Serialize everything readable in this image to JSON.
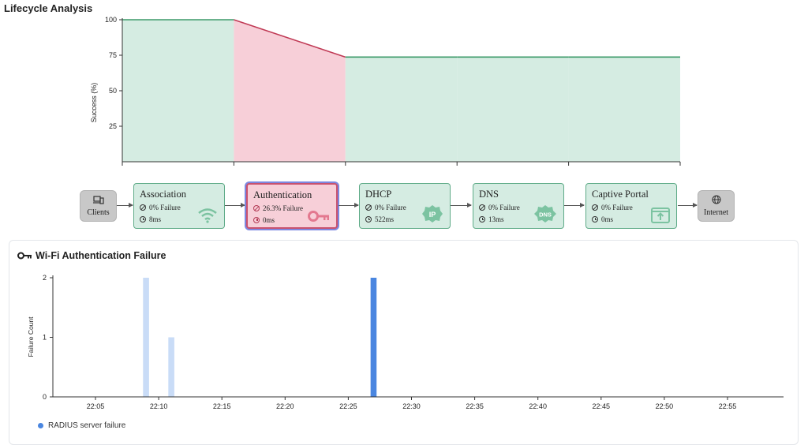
{
  "page": {
    "title": "Lifecycle Analysis"
  },
  "colors": {
    "success_fill": "#d5ece2",
    "success_line": "#3d9a6a",
    "failure_fill": "#f7cfd8",
    "failure_line": "#c03a55",
    "bar_dark": "#4a86e0",
    "bar_light": "#c9dcf7"
  },
  "lifecycle_chart": {
    "ylabel": "Success (%)",
    "y_ticks": [
      "25",
      "50",
      "75",
      "100"
    ]
  },
  "chart_data": [
    {
      "type": "area",
      "ylabel": "Success (%)",
      "ylim": [
        0,
        100
      ],
      "categories": [
        "Association",
        "Authentication",
        "DHCP",
        "DNS",
        "Captive Portal"
      ],
      "values": [
        100,
        100,
        73.7,
        73.7,
        73.7,
        73.7
      ],
      "x": [
        0,
        1,
        2,
        3,
        4,
        5
      ],
      "highlight_segment": "Authentication"
    },
    {
      "type": "bar",
      "ylabel": "Failure Count",
      "ylim": [
        0,
        2
      ],
      "y_ticks": [
        "0",
        "1",
        "2"
      ],
      "x_ticks": [
        "22:05",
        "22:10",
        "22:15",
        "22:20",
        "22:25",
        "22:30",
        "22:35",
        "22:40",
        "22:45",
        "22:50",
        "22:55"
      ],
      "series": [
        {
          "name": "",
          "color": "#c9dcf7",
          "points": [
            {
              "x": "22:09",
              "value": 2
            },
            {
              "x": "22:11",
              "value": 1
            }
          ]
        },
        {
          "name": "RADIUS server failure",
          "color": "#4a86e0",
          "points": [
            {
              "x": "22:27",
              "value": 2
            }
          ]
        }
      ]
    }
  ],
  "endpoints": {
    "clients": {
      "label": "Clients",
      "icon": "devices-icon"
    },
    "internet": {
      "label": "Internet",
      "icon": "globe-icon"
    }
  },
  "stages": [
    {
      "name": "Association",
      "failure": "0% Failure",
      "time": "8ms",
      "icon": "wifi-icon",
      "status": "ok"
    },
    {
      "name": "Authentication",
      "failure": "26.3% Failure",
      "time": "0ms",
      "icon": "key-icon",
      "status": "fail"
    },
    {
      "name": "DHCP",
      "failure": "0% Failure",
      "time": "522ms",
      "icon": "ip-icon",
      "icon_text": "IP",
      "status": "ok"
    },
    {
      "name": "DNS",
      "failure": "0% Failure",
      "time": "13ms",
      "icon": "dns-icon",
      "icon_text": "DNS",
      "status": "ok"
    },
    {
      "name": "Captive Portal",
      "failure": "0% Failure",
      "time": "0ms",
      "icon": "portal-icon",
      "status": "ok"
    }
  ],
  "failure_panel": {
    "title": "Wi-Fi Authentication Failure",
    "icon": "key-icon",
    "ylabel": "Failure Count",
    "legend": "RADIUS server failure"
  }
}
